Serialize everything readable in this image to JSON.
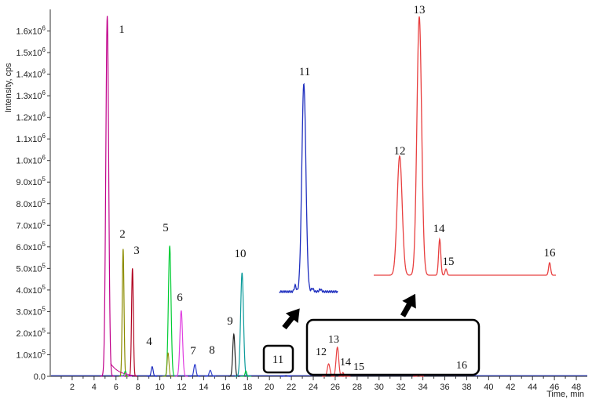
{
  "chart_data": {
    "type": "line",
    "title": "",
    "xlabel": "Time, min",
    "ylabel": "Intensity, cps",
    "xlim": [
      0,
      49
    ],
    "ylim": [
      0,
      1700000
    ],
    "x_ticks": [
      2,
      4,
      6,
      8,
      10,
      12,
      14,
      16,
      18,
      20,
      22,
      24,
      26,
      28,
      30,
      32,
      34,
      36,
      38,
      40,
      42,
      44,
      46,
      48
    ],
    "y_ticks": [
      {
        "value": 0,
        "mantissa": "0.0",
        "exp": ""
      },
      {
        "value": 100000,
        "mantissa": "1.0x10",
        "exp": "5"
      },
      {
        "value": 200000,
        "mantissa": "2.0x10",
        "exp": "5"
      },
      {
        "value": 300000,
        "mantissa": "3.0x10",
        "exp": "5"
      },
      {
        "value": 400000,
        "mantissa": "4.0x10",
        "exp": "5"
      },
      {
        "value": 500000,
        "mantissa": "5.0x10",
        "exp": "5"
      },
      {
        "value": 600000,
        "mantissa": "6.0x10",
        "exp": "5"
      },
      {
        "value": 700000,
        "mantissa": "7.0x10",
        "exp": "5"
      },
      {
        "value": 800000,
        "mantissa": "8.0x10",
        "exp": "5"
      },
      {
        "value": 900000,
        "mantissa": "9.0x10",
        "exp": "5"
      },
      {
        "value": 1000000,
        "mantissa": "1.0x10",
        "exp": "6"
      },
      {
        "value": 1100000,
        "mantissa": "1.1x10",
        "exp": "6"
      },
      {
        "value": 1200000,
        "mantissa": "1.2x10",
        "exp": "6"
      },
      {
        "value": 1300000,
        "mantissa": "1.3x10",
        "exp": "6"
      },
      {
        "value": 1400000,
        "mantissa": "1.4x10",
        "exp": "6"
      },
      {
        "value": 1500000,
        "mantissa": "1.5x10",
        "exp": "6"
      },
      {
        "value": 1600000,
        "mantissa": "1.6x10",
        "exp": "6"
      }
    ],
    "peaks": [
      {
        "label": "1",
        "time": 5.2,
        "height": 1670000,
        "color": "#c0008a",
        "width": 0.13
      },
      {
        "label": "2",
        "time": 6.65,
        "height": 590000,
        "color": "#8c8c00",
        "width": 0.08
      },
      {
        "label": "3",
        "time": 7.5,
        "height": 500000,
        "color": "#b0001e",
        "width": 0.08
      },
      {
        "label": "4",
        "time": 9.3,
        "height": 45000,
        "color": "#1f2fbf",
        "width": 0.09
      },
      {
        "label": "5",
        "time": 10.9,
        "height": 605000,
        "color": "#00cc33",
        "width": 0.12
      },
      {
        "label": "6",
        "time": 11.95,
        "height": 305000,
        "color": "#e040e0",
        "width": 0.12
      },
      {
        "label": "7",
        "time": 13.2,
        "height": 55000,
        "color": "#2a3acc",
        "width": 0.1
      },
      {
        "label": "8",
        "time": 14.6,
        "height": 28000,
        "color": "#3a4acc",
        "width": 0.1
      },
      {
        "label": "9",
        "time": 16.75,
        "height": 195000,
        "color": "#222222",
        "width": 0.1
      },
      {
        "label": "10",
        "time": 17.5,
        "height": 480000,
        "color": "#0a9a9a",
        "width": 0.13
      },
      {
        "label": "11",
        "time": 21.5,
        "height": 4000,
        "color": "#1f2fbf",
        "width": 0.1
      },
      {
        "label": "12",
        "time": 25.4,
        "height": 58000,
        "color": "#e84040",
        "width": 0.12
      },
      {
        "label": "13",
        "time": 26.2,
        "height": 135000,
        "color": "#e84040",
        "width": 0.12
      },
      {
        "label": "14",
        "time": 26.7,
        "height": 18000,
        "color": "#e84040",
        "width": 0.08
      },
      {
        "label": "15",
        "time": 27.0,
        "height": 6000,
        "color": "#e84040",
        "width": 0.08
      },
      {
        "label": "16",
        "time": 33.6,
        "height": 4000,
        "color": "#e84040",
        "width": 0.1
      }
    ],
    "inset_11": {
      "label": "11",
      "color": "#1f2fbf"
    },
    "inset_12_16": {
      "labels": [
        "12",
        "13",
        "14",
        "15",
        "16"
      ],
      "color": "#e84040"
    }
  }
}
